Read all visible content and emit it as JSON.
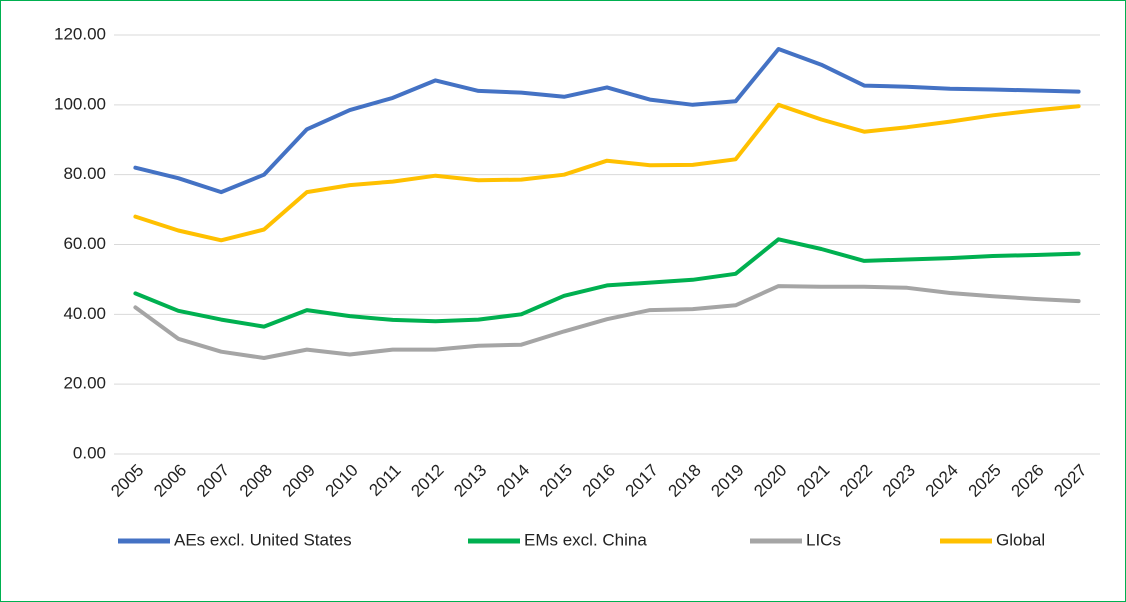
{
  "chart_data": {
    "type": "line",
    "categories": [
      "2005",
      "2006",
      "2007",
      "2008",
      "2009",
      "2010",
      "2011",
      "2012",
      "2013",
      "2014",
      "2015",
      "2016",
      "2017",
      "2018",
      "2019",
      "2020",
      "2021",
      "2022",
      "2023",
      "2024",
      "2025",
      "2026",
      "2027"
    ],
    "series": [
      {
        "name": "AEs excl. United States",
        "color": "#4472c4",
        "values": [
          82,
          79,
          75,
          80,
          93,
          98.5,
          102,
          107,
          104,
          103.5,
          102.3,
          105,
          101.5,
          100,
          101,
          116,
          111.5,
          105.5,
          105.2,
          104.6,
          104.4,
          104.1,
          103.8
        ]
      },
      {
        "name": "EMs excl. China",
        "color": "#00b050",
        "values": [
          46,
          41,
          38.5,
          36.5,
          41.2,
          39.5,
          38.4,
          38,
          38.5,
          40,
          45.3,
          48.3,
          49.1,
          49.9,
          51.6,
          61.5,
          58.7,
          55.3,
          55.7,
          56.1,
          56.7,
          57,
          57.4
        ]
      },
      {
        "name": "LICs",
        "color": "#a5a5a5",
        "values": [
          42,
          33,
          29.3,
          27.5,
          29.9,
          28.5,
          29.9,
          29.9,
          31,
          31.3,
          35.1,
          38.6,
          41.2,
          41.5,
          42.6,
          48.1,
          47.9,
          47.9,
          47.6,
          46.1,
          45.2,
          44.4,
          43.8
        ]
      },
      {
        "name": "Global",
        "color": "#ffc000",
        "values": [
          68,
          64,
          61.2,
          64.3,
          75,
          77,
          78,
          79.7,
          78.4,
          78.6,
          80,
          84,
          82.7,
          82.8,
          84.4,
          100,
          95.8,
          92.3,
          93.6,
          95.2,
          97,
          98.4,
          99.6
        ]
      }
    ],
    "ylim": [
      0,
      120
    ],
    "yticks": [
      {
        "value": 0,
        "label": "0.00"
      },
      {
        "value": 20,
        "label": "20.00"
      },
      {
        "value": 40,
        "label": "40.00"
      },
      {
        "value": 60,
        "label": "60.00"
      },
      {
        "value": 80,
        "label": "80.00"
      },
      {
        "value": 100,
        "label": "100.00"
      },
      {
        "value": 120,
        "label": "120.00"
      }
    ],
    "grid": true,
    "legend": "bottom"
  }
}
